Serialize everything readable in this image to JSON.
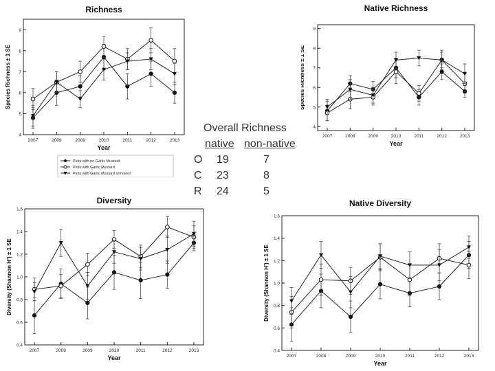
{
  "legend_entries": [
    "Plots with no Garlic Mustard",
    "Plots with Garlic Mustard",
    "Plots with Garlic Mustard removed"
  ],
  "overall": {
    "title": "Overall Richness",
    "headers": [
      "native",
      "non-native"
    ],
    "rows": [
      {
        "label": "O",
        "native": "19",
        "nonnative": "7"
      },
      {
        "label": "C",
        "native": "23",
        "nonnative": "8"
      },
      {
        "label": "R",
        "native": "24",
        "nonnative": "5"
      }
    ]
  },
  "chart_data": [
    {
      "id": "richness",
      "type": "line",
      "title": "Richness",
      "xlabel": "Year",
      "ylabel": "Species Richness ± 1 SE",
      "x": [
        2007,
        2008,
        2009,
        2010,
        2011,
        2012,
        2013
      ],
      "ylim": [
        4,
        9.5
      ],
      "yticks": [
        4,
        5,
        6,
        7,
        8,
        9
      ],
      "legend": "bottom-left",
      "series": [
        {
          "name": "Plots with no Garlic Mustard",
          "marker": "filled-circle",
          "values": [
            4.8,
            6.0,
            6.3,
            7.7,
            6.3,
            6.9,
            6.0
          ],
          "err": [
            0.5,
            0.6,
            0.5,
            0.6,
            0.6,
            0.6,
            0.5
          ]
        },
        {
          "name": "Plots with Garlic Mustard",
          "marker": "open-circle",
          "values": [
            5.7,
            6.5,
            7.0,
            8.2,
            7.6,
            8.5,
            7.5
          ],
          "err": [
            0.5,
            0.5,
            0.5,
            0.5,
            0.5,
            0.6,
            0.6
          ]
        },
        {
          "name": "Plots with Garlic Mustard removed",
          "marker": "filled-triangle",
          "values": [
            4.9,
            6.5,
            5.7,
            7.1,
            7.5,
            7.6,
            6.9
          ],
          "err": [
            0.5,
            0.5,
            0.4,
            0.5,
            0.4,
            0.5,
            0.5
          ]
        }
      ]
    },
    {
      "id": "native-richness",
      "type": "line",
      "title": "Native Richness",
      "xlabel": "Year",
      "ylabel": "Species Richness ± 1 SE",
      "x": [
        2007,
        2008,
        2009,
        2010,
        2011,
        2012,
        2013
      ],
      "ylim": [
        3.8,
        9.2
      ],
      "yticks": [
        4,
        5,
        6,
        7,
        8,
        9
      ],
      "series": [
        {
          "name": "Plots with no Garlic Mustard",
          "marker": "filled-circle",
          "values": [
            4.8,
            6.2,
            5.9,
            7.0,
            5.5,
            6.8,
            5.8
          ],
          "err": [
            0.5,
            0.4,
            0.4,
            0.5,
            0.4,
            0.4,
            0.3
          ]
        },
        {
          "name": "Plots with Garlic Mustard",
          "marker": "open-circle",
          "values": [
            4.7,
            5.4,
            5.5,
            6.8,
            5.7,
            7.4,
            6.2
          ],
          "err": [
            0.4,
            0.5,
            0.4,
            0.6,
            0.4,
            0.5,
            0.5
          ]
        },
        {
          "name": "Plots with Garlic Mustard removed",
          "marker": "filled-triangle",
          "values": [
            5.0,
            5.9,
            5.6,
            7.4,
            7.5,
            7.4,
            6.7
          ],
          "err": [
            0.4,
            0.5,
            0.4,
            0.4,
            0.4,
            0.4,
            0.5
          ]
        }
      ]
    },
    {
      "id": "diversity",
      "type": "line",
      "title": "Diversity",
      "xlabel": "Year",
      "ylabel": "Diversity (Shannon H') ± 1 SE",
      "x": [
        2007,
        2008,
        2009,
        2010,
        2011,
        2012,
        2013
      ],
      "ylim": [
        0.4,
        1.6
      ],
      "yticks": [
        0.4,
        0.6,
        0.8,
        1.0,
        1.2,
        1.4,
        1.6
      ],
      "series": [
        {
          "name": "Plots with no Garlic Mustard",
          "marker": "filled-circle",
          "values": [
            0.66,
            0.94,
            0.77,
            1.04,
            0.97,
            1.02,
            1.3
          ],
          "err": [
            0.16,
            0.13,
            0.14,
            0.15,
            0.16,
            0.12,
            0.07
          ]
        },
        {
          "name": "Plots with Garlic Mustard",
          "marker": "open-circle",
          "values": [
            0.89,
            0.92,
            1.11,
            1.33,
            1.18,
            1.44,
            1.35
          ],
          "err": [
            0.1,
            0.1,
            0.1,
            0.08,
            0.1,
            0.09,
            0.1
          ]
        },
        {
          "name": "Plots with Garlic Mustard removed",
          "marker": "filled-triangle",
          "values": [
            0.87,
            1.3,
            0.92,
            1.22,
            1.16,
            1.24,
            1.38
          ],
          "err": [
            0.08,
            0.12,
            0.12,
            0.1,
            0.1,
            0.12,
            0.11
          ]
        }
      ]
    },
    {
      "id": "native-diversity",
      "type": "line",
      "title": "Native Diversity",
      "xlabel": "Year",
      "ylabel": "Diversity (Shannon H') ± 1 SE",
      "x": [
        2007,
        2008,
        2009,
        2010,
        2011,
        2012,
        2013
      ],
      "ylim": [
        0.4,
        1.6
      ],
      "yticks": [
        0.4,
        0.6,
        0.8,
        1.0,
        1.2,
        1.4,
        1.6
      ],
      "series": [
        {
          "name": "Plots with no Garlic Mustard",
          "marker": "filled-circle",
          "values": [
            0.63,
            0.93,
            0.7,
            0.99,
            0.91,
            0.97,
            1.25
          ],
          "err": [
            0.15,
            0.15,
            0.14,
            0.13,
            0.12,
            0.12,
            0.12
          ]
        },
        {
          "name": "Plots with Garlic Mustard",
          "marker": "open-circle",
          "values": [
            0.74,
            1.03,
            1.02,
            1.23,
            1.03,
            1.22,
            1.16
          ],
          "err": [
            0.14,
            0.14,
            0.12,
            0.12,
            0.14,
            0.13,
            0.12
          ]
        },
        {
          "name": "Plots with Garlic Mustard removed",
          "marker": "filled-triangle",
          "values": [
            0.84,
            1.25,
            0.92,
            1.24,
            1.16,
            1.16,
            1.32
          ],
          "err": [
            0.12,
            0.12,
            0.14,
            0.11,
            0.12,
            0.14,
            0.1
          ]
        }
      ]
    }
  ]
}
